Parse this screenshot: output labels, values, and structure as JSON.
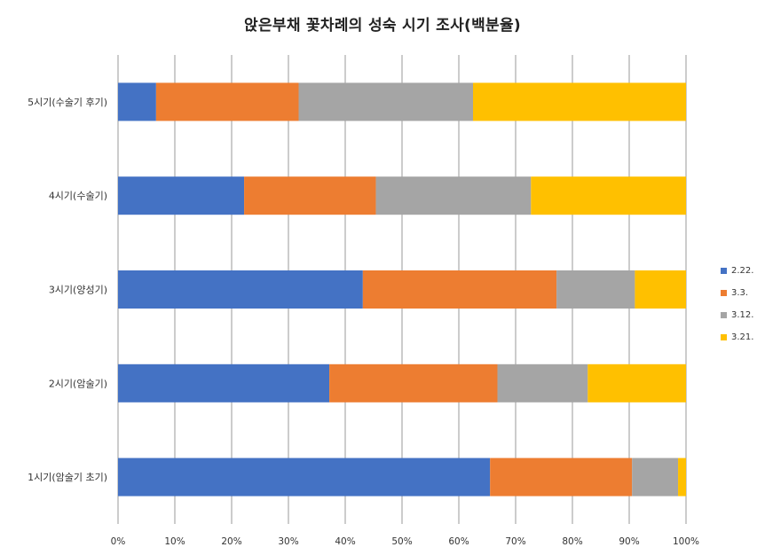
{
  "chart_data": {
    "type": "bar",
    "orientation": "horizontal",
    "stacked": "percent",
    "title": "앉은부채 꽃차례의 성숙 시기 조사(백분율)",
    "categories": [
      "5시기(수술기 후기)",
      "4시기(수술기)",
      "3시기(양성기)",
      "2시기(암술기)",
      "1시기(암술기 초기)"
    ],
    "series": [
      {
        "name": "2.22.",
        "color": "#4472C4",
        "values": [
          6.7,
          22.2,
          43.1,
          37.2,
          65.5
        ]
      },
      {
        "name": "3.3.",
        "color": "#ED7D31",
        "values": [
          25.1,
          23.2,
          34.1,
          29.6,
          25.0
        ]
      },
      {
        "name": "3.12.",
        "color": "#A5A5A5",
        "values": [
          30.7,
          27.3,
          13.8,
          15.9,
          8.1
        ]
      },
      {
        "name": "3.21.",
        "color": "#FFC000",
        "values": [
          37.5,
          27.3,
          9.0,
          17.3,
          1.4
        ]
      }
    ],
    "xlim": [
      0,
      100
    ],
    "xticks": [
      "0%",
      "10%",
      "20%",
      "30%",
      "40%",
      "50%",
      "60%",
      "70%",
      "80%",
      "90%",
      "100%"
    ],
    "grid": true,
    "legend_position": "right",
    "xlabel": "",
    "ylabel": ""
  }
}
